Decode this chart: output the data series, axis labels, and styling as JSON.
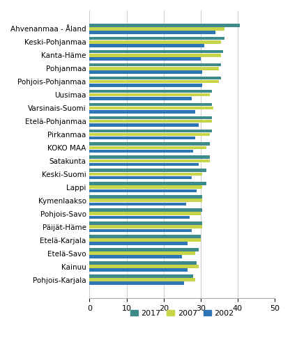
{
  "categories": [
    "Ahvenanmaa - Åland",
    "Keski-Pohjanmaa",
    "Kanta-Häme",
    "Pohjanmaa",
    "Pohjois-Pohjanmaa",
    "Uusimaa",
    "Varsinais-Suomi",
    "Etelä-Pohjanmaa",
    "Pirkanmaa",
    "KOKO MAA",
    "Satakunta",
    "Keski-Suomi",
    "Lappi",
    "Kymenlaakso",
    "Pohjois-Savo",
    "Päijät-Häme",
    "Etelä-Karjala",
    "Etelä-Savo",
    "Kainuu",
    "Pohjois-Karjala"
  ],
  "values_2017": [
    40.5,
    36.5,
    36.0,
    35.5,
    35.5,
    33.0,
    33.0,
    33.0,
    33.0,
    32.5,
    32.5,
    31.5,
    31.5,
    30.5,
    30.5,
    30.5,
    30.0,
    29.5,
    29.0,
    28.0
  ],
  "values_2007": [
    36.5,
    35.5,
    35.5,
    35.0,
    35.0,
    32.5,
    33.5,
    33.0,
    32.5,
    31.5,
    32.5,
    30.5,
    30.5,
    30.5,
    30.0,
    30.5,
    30.0,
    28.5,
    29.5,
    28.5
  ],
  "values_2002": [
    34.0,
    31.0,
    30.0,
    30.5,
    30.5,
    27.5,
    28.5,
    29.5,
    28.5,
    28.0,
    29.5,
    27.5,
    29.0,
    26.0,
    27.0,
    27.5,
    26.5,
    25.0,
    26.5,
    25.5
  ],
  "color_2017": "#3d8a8a",
  "color_2007": "#c8d44a",
  "color_2002": "#2e75b6",
  "xlim": [
    0,
    50
  ],
  "xticks": [
    0,
    10,
    20,
    30,
    40,
    50
  ],
  "background_color": "#ffffff",
  "bar_height": 0.25,
  "ylabel_fontsize": 7.5,
  "xlabel_fontsize": 8.0
}
